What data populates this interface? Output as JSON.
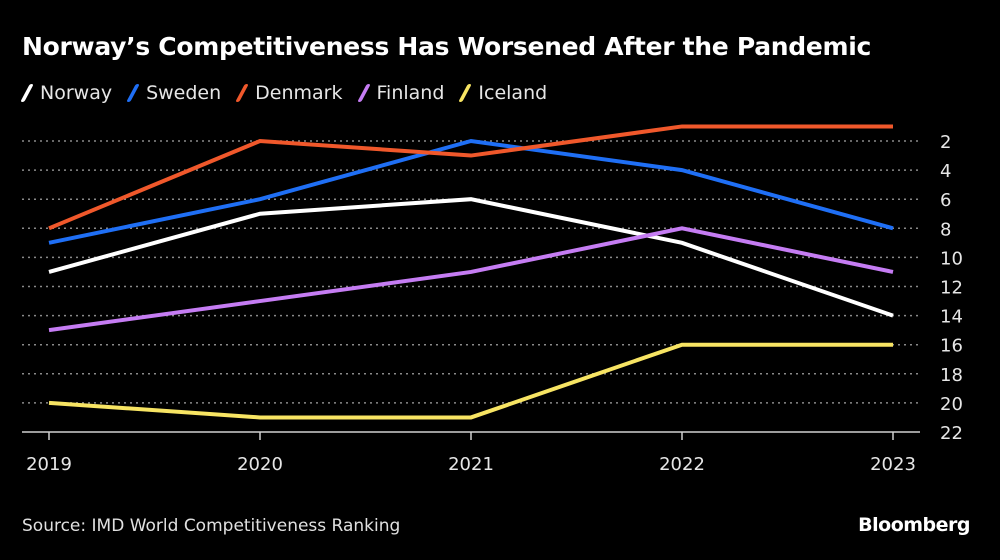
{
  "chart_data": {
    "type": "line",
    "title": "Norway’s Competitiveness Has Worsened After the Pandemic",
    "xlabel": "",
    "ylabel": "",
    "x": [
      "2019",
      "2020",
      "2021",
      "2022",
      "2023"
    ],
    "y_axis": {
      "inverted": true,
      "ylim": [
        22,
        1
      ],
      "ticks": [
        2,
        4,
        6,
        8,
        10,
        12,
        14,
        16,
        18,
        20,
        22
      ],
      "position": "right"
    },
    "grid": true,
    "legend_position": "top-left",
    "series": [
      {
        "name": "Norway",
        "color": "#ffffff",
        "values": [
          11,
          7,
          6,
          9,
          14
        ]
      },
      {
        "name": "Sweden",
        "color": "#1f6ff5",
        "values": [
          9,
          6,
          2,
          4,
          8
        ]
      },
      {
        "name": "Denmark",
        "color": "#f0582b",
        "values": [
          8,
          2,
          3,
          1,
          1
        ]
      },
      {
        "name": "Finland",
        "color": "#c57cf3",
        "values": [
          15,
          13,
          11,
          8,
          11
        ]
      },
      {
        "name": "Iceland",
        "color": "#f7e463",
        "values": [
          20,
          21,
          21,
          16,
          16
        ]
      }
    ],
    "source": "Source: IMD World Competitiveness Ranking",
    "brand": "Bloomberg"
  }
}
